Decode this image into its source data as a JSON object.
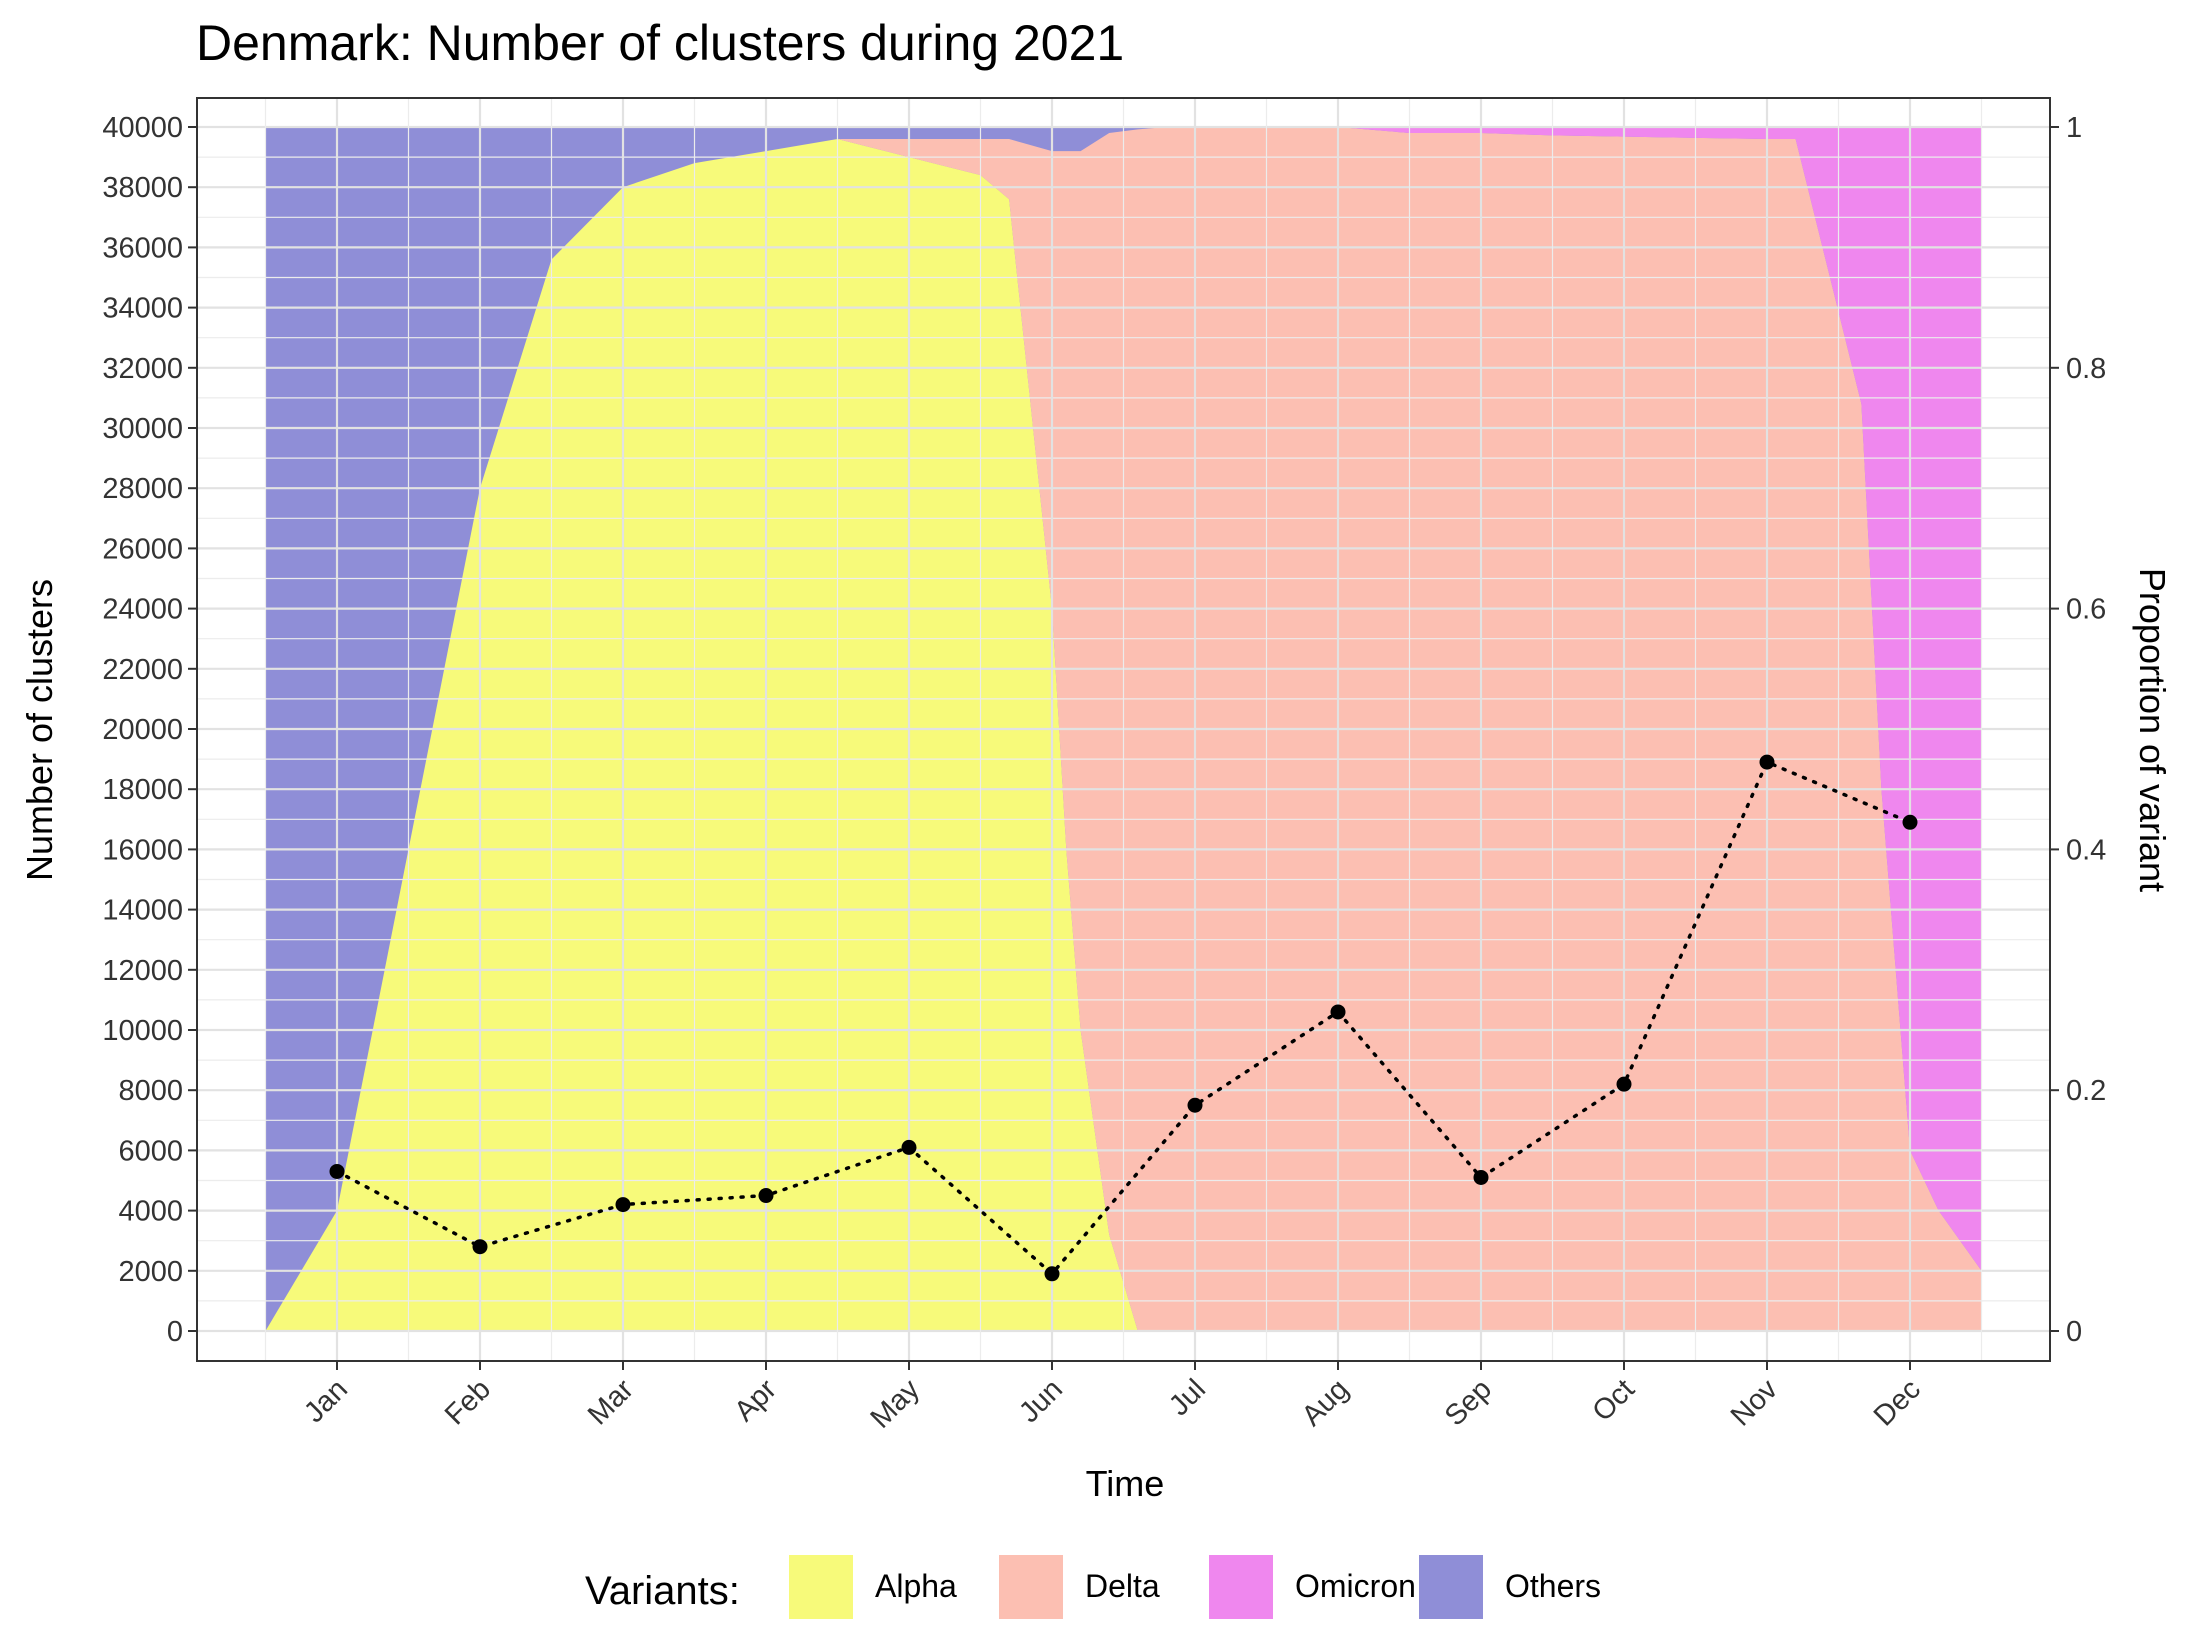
{
  "chart_data": {
    "type": "area",
    "title": "Denmark: Number of clusters during 2021",
    "xlabel": "Time",
    "ylabel": "Number of clusters",
    "y2label": "Proportion of variant",
    "ylim": [
      0,
      40000
    ],
    "y2lim": [
      0,
      1
    ],
    "yticks": [
      "0",
      "2000",
      "4000",
      "6000",
      "8000",
      "10000",
      "12000",
      "14000",
      "16000",
      "18000",
      "20000",
      "22000",
      "24000",
      "26000",
      "28000",
      "30000",
      "32000",
      "34000",
      "36000",
      "38000",
      "40000"
    ],
    "y2ticks": [
      "0",
      "0.2",
      "0.4",
      "0.6",
      "0.8",
      "1"
    ],
    "xticks": [
      "Jan",
      "Feb",
      "Mar",
      "Apr",
      "May",
      "Jun",
      "Jul",
      "Aug",
      "Sep",
      "Oct",
      "Nov",
      "Dec"
    ],
    "grid": true,
    "legend": {
      "title": "Variants:",
      "position": "bottom",
      "items": [
        {
          "label": "Alpha",
          "color": "#F7FA7A"
        },
        {
          "label": "Delta",
          "color": "#FCBFB2"
        },
        {
          "label": "Omicron",
          "color": "#EF87EE"
        },
        {
          "label": "Others",
          "color": "#8F8ED7"
        }
      ]
    },
    "proportions": {
      "x_month": [
        -0.5,
        -0.4,
        0.0,
        0.5,
        1.0,
        1.5,
        2.0,
        2.5,
        3.0,
        3.5,
        4.0,
        4.5,
        4.7,
        5.0,
        5.1,
        5.2,
        5.4,
        5.6,
        5.8,
        6.0,
        6.5,
        7.0,
        7.5,
        8.0,
        8.5,
        9.0,
        9.5,
        10.0,
        10.2,
        10.66,
        10.8,
        11.0,
        11.2,
        11.5
      ],
      "Alpha": [
        0.0,
        0.02,
        0.1,
        0.4,
        0.7,
        0.89,
        0.95,
        0.97,
        0.98,
        0.99,
        0.975,
        0.96,
        0.94,
        0.6,
        0.4,
        0.25,
        0.08,
        0.0,
        0.0,
        0.0,
        0.0,
        0.0,
        0.0,
        0.0,
        0.0,
        0.0,
        0.0,
        0.0,
        0.0,
        0.0,
        0.0,
        0.0,
        0.0,
        0.0
      ],
      "Delta": [
        0.0,
        0.0,
        0.0,
        0.0,
        0.0,
        0.0,
        0.0,
        0.0,
        0.0,
        0.0,
        0.015,
        0.03,
        0.05,
        0.38,
        0.58,
        0.73,
        0.915,
        0.998,
        1.0,
        1.0,
        1.0,
        1.0,
        0.995,
        0.995,
        0.993,
        0.992,
        0.991,
        0.99,
        0.99,
        0.77,
        0.45,
        0.15,
        0.1,
        0.05
      ],
      "Omicron": [
        0.0,
        0.0,
        0.0,
        0.0,
        0.0,
        0.0,
        0.0,
        0.0,
        0.0,
        0.0,
        0.0,
        0.0,
        0.0,
        0.0,
        0.0,
        0.0,
        0.0,
        0.0,
        0.0,
        0.0,
        0.0,
        0.0,
        0.005,
        0.005,
        0.007,
        0.008,
        0.009,
        0.01,
        0.01,
        0.23,
        0.55,
        0.85,
        0.9,
        0.95
      ]
    },
    "clusters": {
      "x": [
        "Jan",
        "Feb",
        "Mar",
        "Apr",
        "May",
        "Jun",
        "Jul",
        "Aug",
        "Sep",
        "Oct",
        "Nov",
        "Dec"
      ],
      "y": [
        5300,
        2800,
        4200,
        4500,
        6100,
        1900,
        7500,
        10600,
        5100,
        8200,
        18900,
        16900
      ],
      "line_style": "dotted",
      "color": "#000000"
    }
  }
}
